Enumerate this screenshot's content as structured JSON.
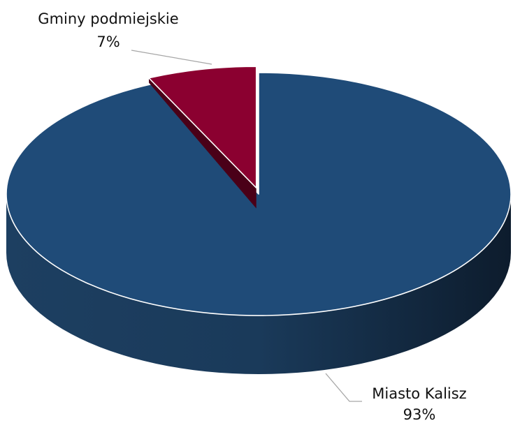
{
  "chart_data": {
    "type": "pie",
    "style": "3d-exploded",
    "slices": [
      {
        "label": "Gminy podmiejskie",
        "value": 7,
        "value_label": "7%",
        "color": "#8B0030",
        "exploded": true
      },
      {
        "label": "Miasto Kalisz",
        "value": 93,
        "value_label": "93%",
        "color": "#1F4B78",
        "exploded": false
      }
    ],
    "legend": "none",
    "data_labels": "outside-with-leader-lines"
  }
}
